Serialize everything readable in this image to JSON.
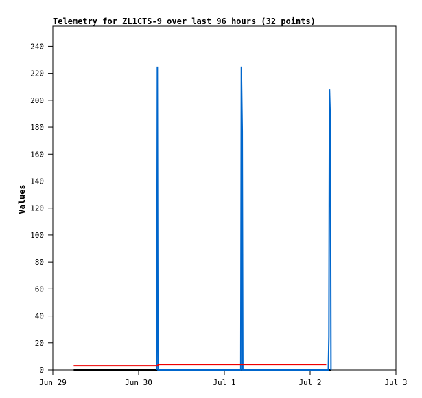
{
  "chart_data": {
    "type": "line",
    "title": "Telemetry for ZL1CTS-9 over last 96 hours (32 points)",
    "xlabel": "",
    "ylabel": "Values",
    "grid": false,
    "legend": "none",
    "xlim": [
      "2025-06-29 00:00",
      "2025-07-03 00:00"
    ],
    "ylim": [
      0,
      255
    ],
    "y_ticks": [
      0,
      20,
      40,
      60,
      80,
      100,
      120,
      140,
      160,
      180,
      200,
      220,
      240
    ],
    "x_ticks": [
      {
        "date": "2025-06-29 00:00",
        "label": "Jun 29"
      },
      {
        "date": "2025-06-30 00:00",
        "label": "Jun 30"
      },
      {
        "date": "2025-07-01 00:00",
        "label": "Jul 1"
      },
      {
        "date": "2025-07-02 00:00",
        "label": "Jul 2"
      },
      {
        "date": "2025-07-03 00:00",
        "label": "Jul 3"
      }
    ],
    "series": [
      {
        "color": "#000000",
        "points": [
          [
            "2025-06-29 05:50",
            0
          ],
          [
            "2025-07-02 05:50",
            0
          ]
        ]
      },
      {
        "color": "#0066cc",
        "points": [
          [
            "2025-06-30 05:00",
            0
          ],
          [
            "2025-06-30 05:10",
            112
          ],
          [
            "2025-06-30 05:15",
            225
          ],
          [
            "2025-06-30 05:25",
            0
          ],
          [
            "2025-07-01 04:35",
            0
          ],
          [
            "2025-07-01 04:45",
            225
          ],
          [
            "2025-07-01 05:00",
            177
          ],
          [
            "2025-07-01 05:10",
            0
          ],
          [
            "2025-07-02 05:05",
            0
          ],
          [
            "2025-07-02 05:15",
            25
          ],
          [
            "2025-07-02 05:25",
            208
          ],
          [
            "2025-07-02 05:40",
            184
          ],
          [
            "2025-07-02 05:50",
            0
          ]
        ]
      },
      {
        "color": "#ee0000",
        "points": [
          [
            "2025-06-29 05:50",
            3
          ],
          [
            "2025-06-30 05:20",
            3
          ],
          [
            "2025-06-30 05:30",
            4
          ],
          [
            "2025-07-02 04:30",
            4
          ]
        ]
      }
    ]
  }
}
